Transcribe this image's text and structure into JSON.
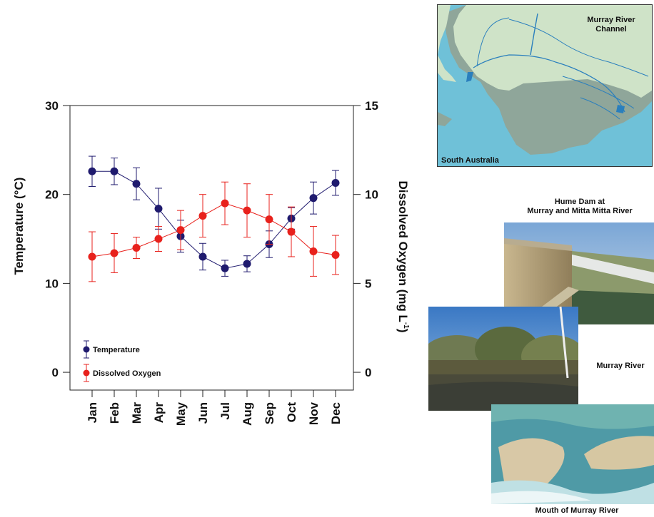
{
  "chart_data": {
    "type": "line",
    "categories": [
      "Jan",
      "Feb",
      "Mar",
      "Apr",
      "May",
      "Jun",
      "Jul",
      "Aug",
      "Sep",
      "Oct",
      "Nov",
      "Dec"
    ],
    "ylabel_left": "Temperature (°C)",
    "ylabel_right_main": "Dissolved Oxygen (mg L",
    "ylabel_right_sup": "-1",
    "ylabel_right_close": ")",
    "ylim_left": [
      -2,
      30
    ],
    "ylim_right": [
      -1,
      15
    ],
    "yticks_left": [
      0,
      10,
      20,
      30
    ],
    "yticks_right": [
      0,
      5,
      10,
      15
    ],
    "legend_position": "bottom-left",
    "grid": false,
    "series": [
      {
        "name": "Temperature",
        "axis": "left",
        "color": "#1f1a6e",
        "values": [
          22.6,
          22.6,
          21.2,
          18.4,
          15.3,
          13.0,
          11.7,
          12.2,
          14.4,
          17.3,
          19.6,
          21.3
        ],
        "errors": [
          1.7,
          1.5,
          1.8,
          2.3,
          1.8,
          1.5,
          0.9,
          0.9,
          1.5,
          1.2,
          1.8,
          1.4
        ]
      },
      {
        "name": "Dissolved Oxygen",
        "axis": "right",
        "color": "#e8211c",
        "values": [
          6.5,
          6.7,
          7.0,
          7.5,
          8.0,
          8.8,
          9.5,
          9.1,
          8.6,
          7.9,
          6.8,
          6.6
        ],
        "errors": [
          1.4,
          1.1,
          0.6,
          0.7,
          1.1,
          1.2,
          1.2,
          1.5,
          1.4,
          1.4,
          1.4,
          1.1
        ]
      }
    ]
  },
  "figure": {
    "map": {
      "label_channel": "Murray River\nChannel",
      "label_state": "South Australia"
    },
    "photos": {
      "hume_caption": "Hume Dam at\nMurray and Mitta Mitta River",
      "river_caption": "Murray River",
      "mouth_caption": "Mouth of Murray River"
    },
    "colors": {
      "map_sea": "#6fc1d8",
      "map_land": "#cfe3c8",
      "map_grey": "#8fa69a",
      "river_blue": "#2a7fbd"
    }
  }
}
